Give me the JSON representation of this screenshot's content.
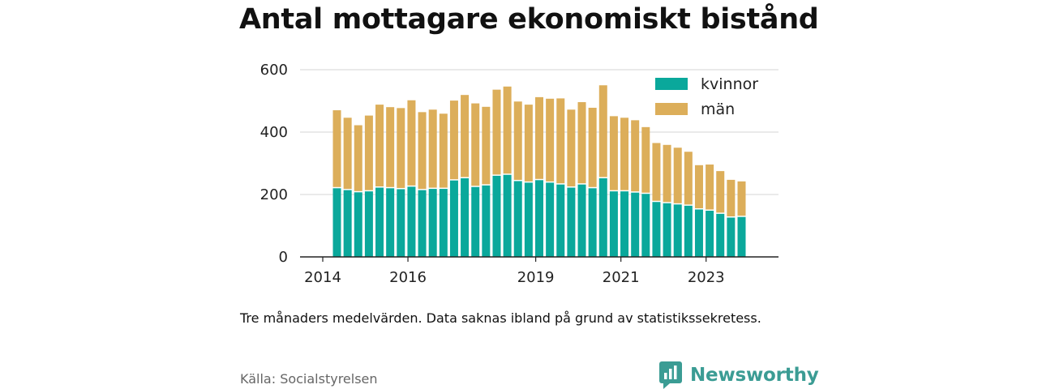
{
  "chart_data": {
    "type": "bar",
    "stacked": true,
    "title": "Antal mottagare ekonomiskt bistånd",
    "xlabel": "",
    "ylabel": "",
    "ylim": [
      0,
      600
    ],
    "yticks": [
      0,
      200,
      400,
      600
    ],
    "grid": true,
    "legend_position": "top-right",
    "x": [
      "2014-05",
      "2014-08",
      "2014-11",
      "2015-02",
      "2015-05",
      "2015-08",
      "2015-11",
      "2016-02",
      "2016-05",
      "2016-08",
      "2016-11",
      "2017-02",
      "2017-05",
      "2017-08",
      "2017-11",
      "2018-02",
      "2018-05",
      "2018-08",
      "2018-11",
      "2019-02",
      "2019-05",
      "2019-08",
      "2019-11",
      "2020-02",
      "2020-05",
      "2020-08",
      "2020-11",
      "2021-02",
      "2021-05",
      "2021-08",
      "2021-11",
      "2022-02",
      "2022-05",
      "2022-08",
      "2022-11",
      "2023-02",
      "2023-05",
      "2023-08",
      "2023-11",
      "2024-02"
    ],
    "xticks": [
      {
        "date": "2014-01",
        "label": "2014"
      },
      {
        "date": "2016-01",
        "label": "2016"
      },
      {
        "date": "2019-01",
        "label": "2019"
      },
      {
        "date": "2021-01",
        "label": "2021"
      },
      {
        "date": "2023-01",
        "label": "2023"
      }
    ],
    "series": [
      {
        "name": "kvinnor",
        "color": "#0aa89b",
        "values": [
          220,
          214,
          207,
          210,
          222,
          220,
          217,
          225,
          214,
          218,
          218,
          245,
          252,
          224,
          229,
          260,
          263,
          243,
          238,
          246,
          238,
          232,
          222,
          232,
          220,
          252,
          210,
          210,
          206,
          202,
          176,
          172,
          168,
          164,
          152,
          148,
          138,
          126,
          128,
          0
        ]
      },
      {
        "name": "män",
        "color": "#dcae5a",
        "values": [
          250,
          232,
          215,
          243,
          266,
          260,
          260,
          277,
          250,
          254,
          241,
          256,
          267,
          268,
          252,
          276,
          283,
          255,
          250,
          266,
          269,
          276,
          250,
          264,
          258,
          298,
          241,
          236,
          232,
          214,
          189,
          187,
          182,
          173,
          142,
          148,
          137,
          121,
          114,
          0
        ]
      }
    ]
  },
  "note": "Tre månaders medelvärden. Data saknas ibland på grund av statistikssekretess.",
  "source": "Källa: Socialstyrelsen",
  "brand": {
    "name": "Newsworthy",
    "icon": "bar-chart-speech-bubble-icon",
    "color": "#3b9c94"
  }
}
